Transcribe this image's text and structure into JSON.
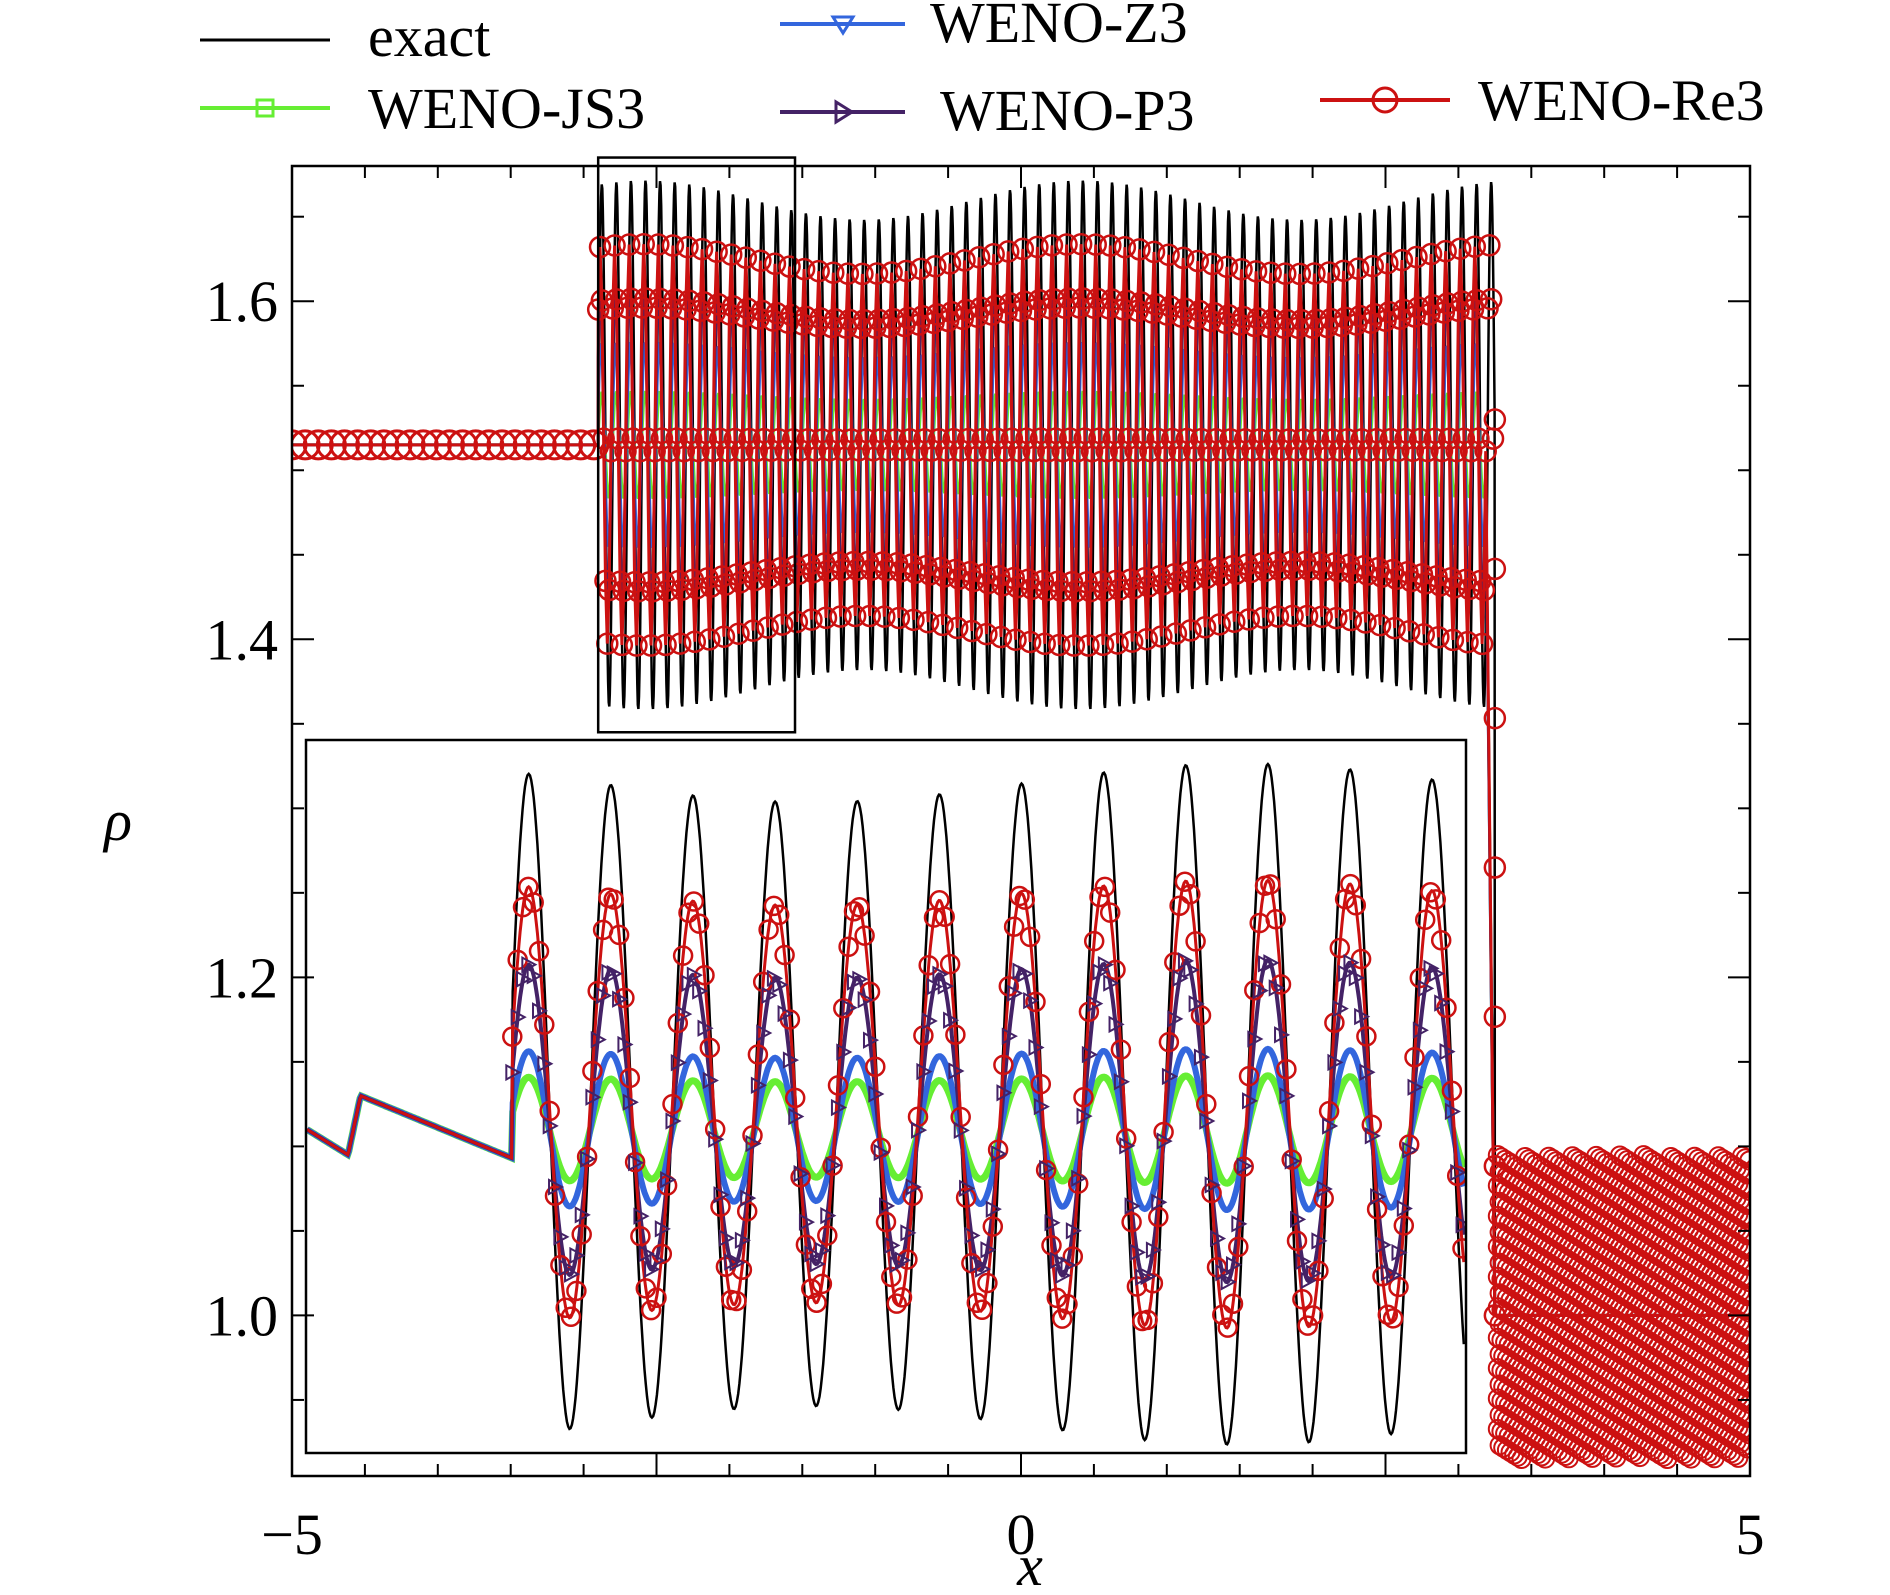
{
  "chart_data": {
    "type": "line",
    "title": "",
    "xlabel": "x",
    "ylabel": "ρ",
    "xlim": [
      -5,
      5
    ],
    "ylim": [
      0.905,
      1.68
    ],
    "xticks": [
      {
        "value": -5,
        "label": "−5"
      },
      {
        "value": 0,
        "label": "0"
      },
      {
        "value": 5,
        "label": "5"
      }
    ],
    "yticks": [
      {
        "value": 1.0,
        "label": "1.0"
      },
      {
        "value": 1.2,
        "label": "1.2"
      },
      {
        "value": 1.4,
        "label": "1.4"
      },
      {
        "value": 1.6,
        "label": "1.6"
      }
    ],
    "grid": false,
    "legend_position": "top",
    "zoom_box": {
      "x": [
        -2.9,
        -1.55
      ],
      "y": [
        1.345,
        1.685
      ]
    },
    "series": [
      {
        "name": "exact",
        "color": "#000000",
        "marker": "none",
        "pre_shock_density": 1.515,
        "shock_x": -2.9,
        "post_shock_mean": 1.515,
        "post_shock_amplitude": 0.145,
        "right_shock_x": 3.25,
        "right_state_density": 1.0,
        "right_state_amplitude": 0.1
      },
      {
        "name": "WENO-JS3",
        "color": "#66ee33",
        "marker": "square",
        "post_shock_mean": 1.515,
        "post_shock_amplitude": 0.03
      },
      {
        "name": "WENO-Z3",
        "color": "#3366dd",
        "marker": "triangle-down",
        "post_shock_mean": 1.515,
        "post_shock_amplitude": 0.06
      },
      {
        "name": "WENO-P3",
        "color": "#442266",
        "marker": "triangle-right",
        "post_shock_mean": 1.515,
        "post_shock_amplitude": 0.09
      },
      {
        "name": "WENO-Re3",
        "color": "#cc1111",
        "marker": "circle",
        "post_shock_mean": 1.515,
        "post_shock_amplitude": 0.11
      }
    ]
  }
}
